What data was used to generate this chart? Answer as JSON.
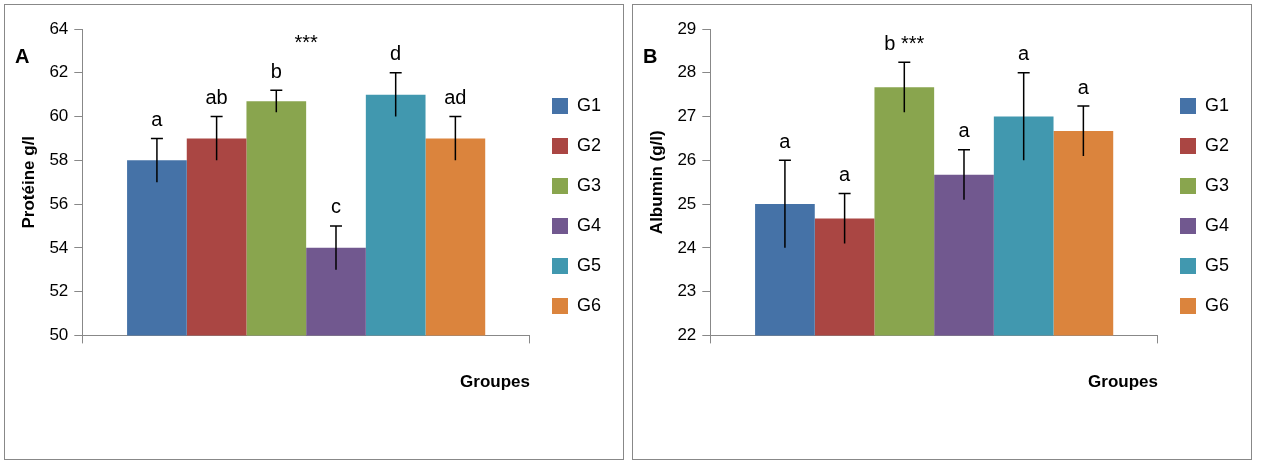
{
  "chart_data": [
    {
      "type": "bar",
      "title": "A",
      "xlabel": "Groupes",
      "annotations": [
        "***"
      ],
      "ylabel": "Protéine g/l",
      "categories": [
        null
      ],
      "ylim": [
        50,
        64
      ],
      "yticks": [
        50,
        52,
        54,
        56,
        58,
        60,
        62,
        64
      ],
      "grid": false,
      "legend": "right",
      "series": [
        {
          "name": "G1",
          "color": "#4572a7",
          "values": [
            58
          ],
          "errors": [
            1
          ],
          "value_labels": [
            "a"
          ]
        },
        {
          "name": "G2",
          "color": "#aa4643",
          "values": [
            59
          ],
          "errors": [
            1
          ],
          "value_labels": [
            "ab"
          ]
        },
        {
          "name": "G3",
          "color": "#89a54e",
          "values": [
            60.7
          ],
          "errors": [
            0.5
          ],
          "value_labels": [
            "b"
          ]
        },
        {
          "name": "G4",
          "color": "#71588f",
          "values": [
            54
          ],
          "errors": [
            1
          ],
          "value_labels": [
            "c"
          ]
        },
        {
          "name": "G5",
          "color": "#4198af",
          "values": [
            61
          ],
          "errors": [
            1
          ],
          "value_labels": [
            "d"
          ]
        },
        {
          "name": "G6",
          "color": "#db843d",
          "values": [
            59
          ],
          "errors": [
            1
          ],
          "value_labels": [
            "ad"
          ]
        }
      ]
    },
    {
      "type": "bar",
      "title": "B",
      "xlabel": "Groupes",
      "ylabel": "Albumin (g/l)",
      "categories": [
        null
      ],
      "ylim": [
        22,
        29
      ],
      "yticks": [
        22,
        23,
        24,
        25,
        26,
        27,
        28,
        29
      ],
      "grid": false,
      "legend": "right",
      "series": [
        {
          "name": "G1",
          "color": "#4572a7",
          "values": [
            25
          ],
          "errors": [
            1
          ],
          "value_labels": [
            "a"
          ]
        },
        {
          "name": "G2",
          "color": "#aa4643",
          "values": [
            24.67
          ],
          "errors": [
            0.57
          ],
          "value_labels": [
            "a"
          ]
        },
        {
          "name": "G3",
          "color": "#89a54e",
          "values": [
            27.67
          ],
          "errors": [
            0.57
          ],
          "value_labels": [
            "b ***"
          ]
        },
        {
          "name": "G4",
          "color": "#71588f",
          "values": [
            25.67
          ],
          "errors": [
            0.57
          ],
          "value_labels": [
            "a"
          ]
        },
        {
          "name": "G5",
          "color": "#4198af",
          "values": [
            27
          ],
          "errors": [
            1
          ],
          "value_labels": [
            "a"
          ]
        },
        {
          "name": "G6",
          "color": "#db843d",
          "values": [
            26.67
          ],
          "errors": [
            0.57
          ],
          "value_labels": [
            "a"
          ]
        }
      ]
    }
  ]
}
